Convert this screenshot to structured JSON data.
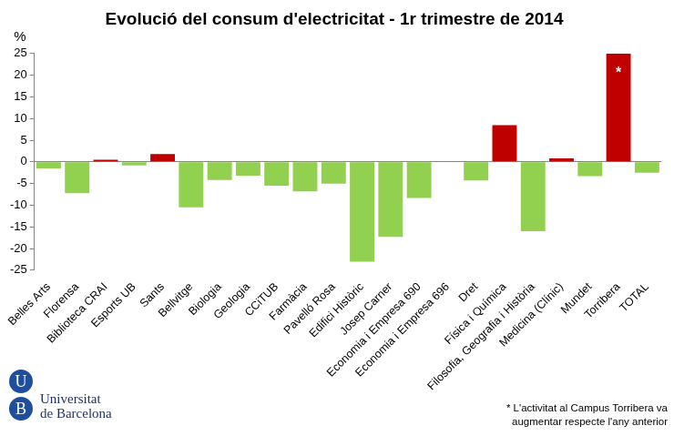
{
  "chart_data": {
    "type": "bar",
    "title": "Evolució del consum d'electricitat - 1r trimestre de 2014",
    "y_label": "%",
    "categories": [
      "Belles Arts",
      "Florensa",
      "Biblioteca CRAI",
      "Esports UB",
      "Sants",
      "Bellvitge",
      "Biologia",
      "Geologia",
      "CCiTUB",
      "Farmàcia",
      "Pavelló Rosa",
      "Edifici Històric",
      "Josep Carner",
      "Economia i Empresa 690",
      "Economia i Empresa 696",
      "Dret",
      "Física i Química",
      "Filosofia, Geografia i Història",
      "Medicina (Clínic)",
      "Mundet",
      "Torribera",
      "TOTAL"
    ],
    "values": [
      -1.5,
      -7.2,
      0.5,
      -0.8,
      1.8,
      -10.5,
      -4.2,
      -3.2,
      -5.5,
      -6.8,
      -5.0,
      -23.0,
      -17.3,
      -8.3,
      0,
      -4.3,
      8.5,
      -16.0,
      0.8,
      -3.3,
      25,
      -2.5
    ],
    "colors": [
      "#92d050",
      "#92d050",
      "#c00000",
      "#92d050",
      "#c00000",
      "#92d050",
      "#92d050",
      "#92d050",
      "#92d050",
      "#92d050",
      "#92d050",
      "#92d050",
      "#92d050",
      "#92d050",
      "#92d050",
      "#92d050",
      "#c00000",
      "#92d050",
      "#c00000",
      "#92d050",
      "#c00000",
      "#92d050"
    ],
    "ylim": [
      -25,
      25
    ],
    "yticks": [
      -25,
      -20,
      -15,
      -10,
      -5,
      0,
      5,
      10,
      15,
      20,
      25
    ],
    "grid": false,
    "legend": false,
    "annotations": [
      {
        "text": "*",
        "category": "Torribera"
      }
    ],
    "footnote": "* L'activitat  al Campus Torribera va augmentar respecte l'any anterior",
    "logo": {
      "letters": [
        "U",
        "B"
      ],
      "lines": [
        "Universitat",
        "de Barcelona"
      ]
    }
  }
}
